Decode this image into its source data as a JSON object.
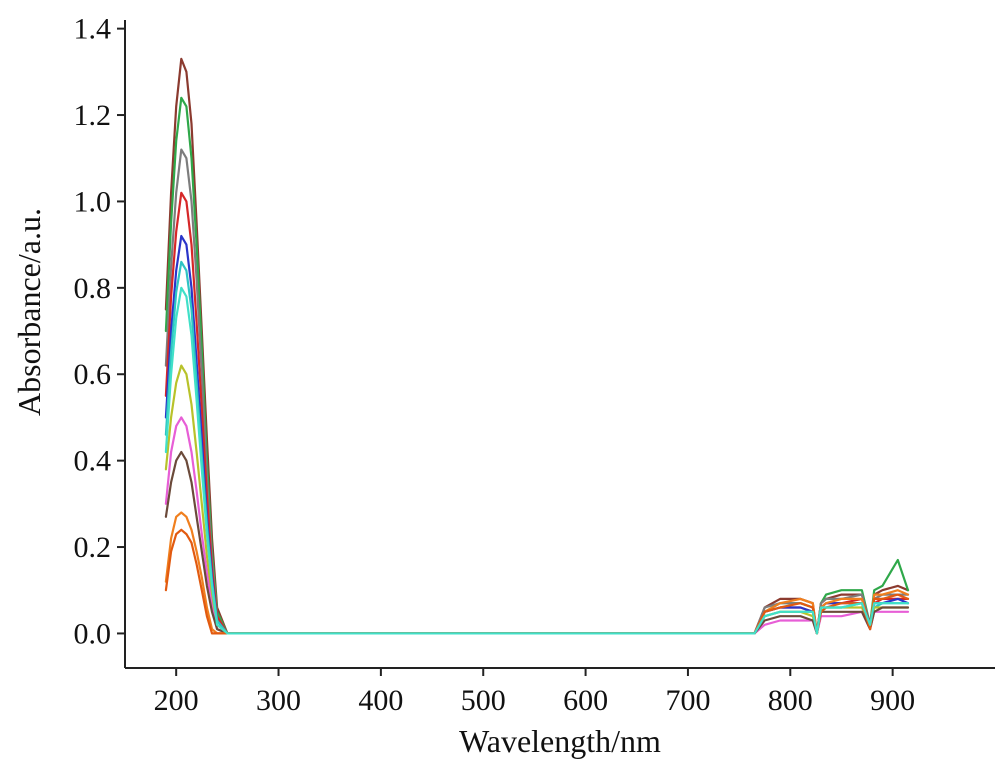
{
  "chart_data": {
    "type": "line",
    "title": "",
    "xlabel": "Wavelength/nm",
    "ylabel": "Absorbance/a.u.",
    "xlim": [
      150,
      1000
    ],
    "ylim": [
      -0.08,
      1.42
    ],
    "xticks": [
      200,
      300,
      400,
      500,
      600,
      700,
      800,
      900
    ],
    "xtick_labels": [
      "200",
      "300",
      "400",
      "500",
      "600",
      "700",
      "800",
      "900"
    ],
    "yticks": [
      0.0,
      0.2,
      0.4,
      0.6,
      0.8,
      1.0,
      1.2,
      1.4
    ],
    "ytick_labels": [
      "0.0",
      "0.2",
      "0.4",
      "0.6",
      "0.8",
      "1.0",
      "1.2",
      "1.4"
    ],
    "grid": false,
    "legend": "none",
    "x": [
      190,
      195,
      200,
      205,
      210,
      215,
      220,
      225,
      230,
      235,
      240,
      250,
      260,
      300,
      400,
      500,
      600,
      700,
      765,
      775,
      790,
      810,
      822,
      826,
      830,
      835,
      850,
      870,
      878,
      882,
      890,
      905,
      915
    ],
    "series": [
      {
        "color": "#8b3a2f",
        "values": [
          0.75,
          1.02,
          1.22,
          1.33,
          1.3,
          1.18,
          0.95,
          0.7,
          0.45,
          0.22,
          0.06,
          0.0,
          0.0,
          0.0,
          0.0,
          0.0,
          0.0,
          0.0,
          0.0,
          0.06,
          0.08,
          0.08,
          0.07,
          0.0,
          0.07,
          0.08,
          0.09,
          0.09,
          0.02,
          0.09,
          0.1,
          0.11,
          0.1
        ]
      },
      {
        "color": "#2fa84a",
        "values": [
          0.7,
          0.95,
          1.14,
          1.24,
          1.22,
          1.1,
          0.9,
          0.66,
          0.4,
          0.19,
          0.05,
          0.0,
          0.0,
          0.0,
          0.0,
          0.0,
          0.0,
          0.0,
          0.0,
          0.05,
          0.07,
          0.07,
          0.06,
          0.0,
          0.07,
          0.09,
          0.1,
          0.1,
          0.02,
          0.1,
          0.11,
          0.17,
          0.1
        ]
      },
      {
        "color": "#7d7d7d",
        "values": [
          0.62,
          0.85,
          1.02,
          1.12,
          1.1,
          1.0,
          0.82,
          0.6,
          0.36,
          0.17,
          0.04,
          0.0,
          0.0,
          0.0,
          0.0,
          0.0,
          0.0,
          0.0,
          0.0,
          0.06,
          0.07,
          0.07,
          0.06,
          0.0,
          0.07,
          0.08,
          0.08,
          0.09,
          0.02,
          0.08,
          0.09,
          0.09,
          0.09
        ]
      },
      {
        "color": "#d62728",
        "values": [
          0.55,
          0.78,
          0.93,
          1.02,
          1.0,
          0.9,
          0.72,
          0.52,
          0.32,
          0.15,
          0.04,
          0.0,
          0.0,
          0.0,
          0.0,
          0.0,
          0.0,
          0.0,
          0.0,
          0.05,
          0.06,
          0.06,
          0.05,
          0.0,
          0.06,
          0.07,
          0.07,
          0.08,
          0.02,
          0.07,
          0.08,
          0.08,
          0.08
        ]
      },
      {
        "color": "#2a35c9",
        "values": [
          0.5,
          0.7,
          0.84,
          0.92,
          0.9,
          0.8,
          0.63,
          0.45,
          0.27,
          0.13,
          0.03,
          0.0,
          0.0,
          0.0,
          0.0,
          0.0,
          0.0,
          0.0,
          0.0,
          0.05,
          0.06,
          0.06,
          0.05,
          0.0,
          0.06,
          0.07,
          0.07,
          0.07,
          0.02,
          0.07,
          0.07,
          0.08,
          0.07
        ]
      },
      {
        "color": "#2ec4c4",
        "values": [
          0.46,
          0.65,
          0.79,
          0.86,
          0.84,
          0.75,
          0.58,
          0.41,
          0.25,
          0.12,
          0.03,
          0.0,
          0.0,
          0.0,
          0.0,
          0.0,
          0.0,
          0.0,
          0.0,
          0.04,
          0.05,
          0.05,
          0.05,
          0.0,
          0.06,
          0.06,
          0.06,
          0.07,
          0.02,
          0.06,
          0.07,
          0.07,
          0.07
        ]
      },
      {
        "color": "#b8c22a",
        "values": [
          0.38,
          0.5,
          0.58,
          0.62,
          0.6,
          0.53,
          0.42,
          0.3,
          0.18,
          0.08,
          0.02,
          0.0,
          0.0,
          0.0,
          0.0,
          0.0,
          0.0,
          0.0,
          0.0,
          0.04,
          0.05,
          0.05,
          0.04,
          0.0,
          0.05,
          0.06,
          0.06,
          0.06,
          0.02,
          0.06,
          0.06,
          0.06,
          0.06
        ]
      },
      {
        "color": "#e75ed6",
        "values": [
          0.3,
          0.42,
          0.48,
          0.5,
          0.48,
          0.42,
          0.33,
          0.23,
          0.14,
          0.06,
          0.01,
          0.0,
          0.0,
          0.0,
          0.0,
          0.0,
          0.0,
          0.0,
          0.0,
          0.02,
          0.03,
          0.03,
          0.03,
          0.0,
          0.04,
          0.04,
          0.04,
          0.05,
          0.01,
          0.05,
          0.05,
          0.05,
          0.05
        ]
      },
      {
        "color": "#6b4a3a",
        "values": [
          0.27,
          0.35,
          0.4,
          0.42,
          0.4,
          0.35,
          0.27,
          0.19,
          0.11,
          0.05,
          0.01,
          0.0,
          0.0,
          0.0,
          0.0,
          0.0,
          0.0,
          0.0,
          0.0,
          0.03,
          0.04,
          0.04,
          0.03,
          0.0,
          0.05,
          0.05,
          0.05,
          0.05,
          0.01,
          0.05,
          0.06,
          0.06,
          0.06
        ]
      },
      {
        "color": "#f07f1e",
        "values": [
          0.12,
          0.22,
          0.27,
          0.28,
          0.27,
          0.24,
          0.19,
          0.13,
          0.06,
          0.01,
          0.0,
          0.0,
          0.0,
          0.0,
          0.0,
          0.0,
          0.0,
          0.0,
          0.0,
          0.05,
          0.07,
          0.08,
          0.07,
          0.0,
          0.06,
          0.07,
          0.08,
          0.08,
          0.01,
          0.09,
          0.09,
          0.1,
          0.09
        ]
      },
      {
        "color": "#e25a10",
        "values": [
          0.1,
          0.19,
          0.23,
          0.24,
          0.23,
          0.21,
          0.16,
          0.1,
          0.04,
          0.0,
          0.0,
          0.0,
          0.0,
          0.0,
          0.0,
          0.0,
          0.0,
          0.0,
          0.0,
          0.05,
          0.06,
          0.07,
          0.06,
          0.0,
          0.05,
          0.06,
          0.07,
          0.07,
          0.01,
          0.08,
          0.08,
          0.09,
          0.08
        ]
      },
      {
        "color": "#40e0c8",
        "values": [
          0.42,
          0.6,
          0.73,
          0.8,
          0.78,
          0.69,
          0.54,
          0.38,
          0.23,
          0.11,
          0.02,
          0.0,
          0.0,
          0.0,
          0.0,
          0.0,
          0.0,
          0.0,
          0.0,
          0.04,
          0.05,
          0.05,
          0.05,
          0.0,
          0.06,
          0.06,
          0.06,
          0.07,
          0.02,
          0.07,
          0.07,
          0.07,
          0.07
        ]
      }
    ]
  }
}
